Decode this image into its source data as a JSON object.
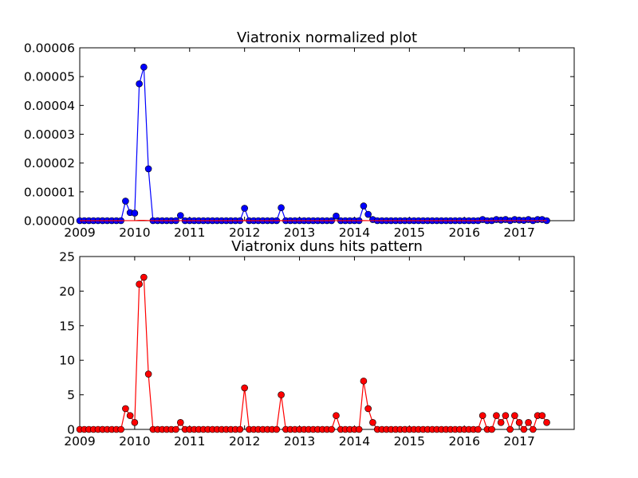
{
  "chart_data": [
    {
      "type": "line",
      "title": "Viatronix normalized plot",
      "xlabel": "",
      "ylabel": "",
      "xlim": [
        2009,
        2018
      ],
      "ylim": [
        0,
        6e-05
      ],
      "x_ticks": [
        "2009",
        "2010",
        "2011",
        "2012",
        "2013",
        "2014",
        "2015",
        "2016",
        "2017"
      ],
      "y_ticks": [
        "0.00000",
        "0.00001",
        "0.00002",
        "0.00003",
        "0.00004",
        "0.00005",
        "0.00006"
      ],
      "grid": false,
      "series": [
        {
          "color": "#0000ff",
          "marker": "circle",
          "values": [
            0,
            0,
            0,
            0,
            0,
            0,
            0,
            0,
            0,
            0,
            6.8e-06,
            2.8e-06,
            2.6e-06,
            4.75e-05,
            5.33e-05,
            1.8e-05,
            0,
            0,
            0,
            0,
            0,
            0,
            1.8e-06,
            0,
            0,
            0,
            0,
            0,
            0,
            0,
            0,
            0,
            0,
            0,
            0,
            0,
            4.3e-06,
            0,
            0,
            0,
            0,
            0,
            0,
            0,
            4.5e-06,
            0,
            0,
            0,
            0,
            0,
            0,
            0,
            0,
            0,
            0,
            0,
            1.6e-06,
            0,
            0,
            0,
            0,
            0,
            5.1e-06,
            2.2e-06,
            4e-07,
            0,
            0,
            0,
            0,
            0,
            0,
            0,
            0,
            0,
            0,
            0,
            0,
            0,
            0,
            0,
            0,
            0,
            0,
            0,
            0,
            0,
            0,
            0,
            4e-07,
            0,
            0,
            4e-07,
            2e-07,
            4e-07,
            0,
            4e-07,
            2e-07,
            1e-07,
            4e-07,
            0,
            4e-07,
            4e-07,
            0
          ]
        },
        {
          "color": "#ff0000",
          "marker": "none",
          "values": [
            0,
            0,
            0,
            0,
            0,
            0,
            0,
            0,
            0,
            0,
            2e-08,
            1e-08,
            1e-08,
            1e-07,
            1e-07,
            5e-08,
            0,
            0,
            0,
            0,
            0,
            0,
            1e-08,
            0,
            0,
            0,
            0,
            0,
            0,
            0,
            0,
            0,
            0,
            0,
            0,
            0,
            4e-08,
            0,
            0,
            0,
            0,
            0,
            0,
            0,
            3e-08,
            0,
            0,
            0,
            0,
            0,
            0,
            0,
            0,
            0,
            0,
            0,
            1e-08,
            0,
            0,
            0,
            0,
            0,
            4e-08,
            2e-08,
            1e-08,
            0,
            0,
            0,
            0,
            0,
            0,
            0,
            0,
            0,
            0,
            0,
            0,
            0,
            0,
            0,
            0,
            0,
            0,
            0,
            0,
            0,
            0,
            0,
            1e-08,
            0,
            0,
            1e-08,
            1e-08,
            1e-08,
            0,
            1e-08,
            1e-08,
            1e-08,
            1e-08,
            0,
            1e-08,
            1e-08,
            0
          ]
        }
      ]
    },
    {
      "type": "line",
      "title": "Viatronix duns hits pattern",
      "xlabel": "",
      "ylabel": "",
      "xlim": [
        2009,
        2018
      ],
      "ylim": [
        0,
        25
      ],
      "x_ticks": [
        "2009",
        "2010",
        "2011",
        "2012",
        "2013",
        "2014",
        "2015",
        "2016",
        "2017"
      ],
      "y_ticks": [
        "0",
        "5",
        "10",
        "15",
        "20",
        "25"
      ],
      "grid": false,
      "series": [
        {
          "color": "#ff0000",
          "marker": "circle",
          "values": [
            0,
            0,
            0,
            0,
            0,
            0,
            0,
            0,
            0,
            0,
            3,
            2,
            1,
            21,
            22,
            8,
            0,
            0,
            0,
            0,
            0,
            0,
            1,
            0,
            0,
            0,
            0,
            0,
            0,
            0,
            0,
            0,
            0,
            0,
            0,
            0,
            6,
            0,
            0,
            0,
            0,
            0,
            0,
            0,
            5,
            0,
            0,
            0,
            0,
            0,
            0,
            0,
            0,
            0,
            0,
            0,
            2,
            0,
            0,
            0,
            0,
            0,
            7,
            3,
            1,
            0,
            0,
            0,
            0,
            0,
            0,
            0,
            0,
            0,
            0,
            0,
            0,
            0,
            0,
            0,
            0,
            0,
            0,
            0,
            0,
            0,
            0,
            0,
            2,
            0,
            0,
            2,
            1,
            2,
            0,
            2,
            1,
            0,
            1,
            0,
            2,
            2,
            1
          ]
        }
      ]
    }
  ]
}
